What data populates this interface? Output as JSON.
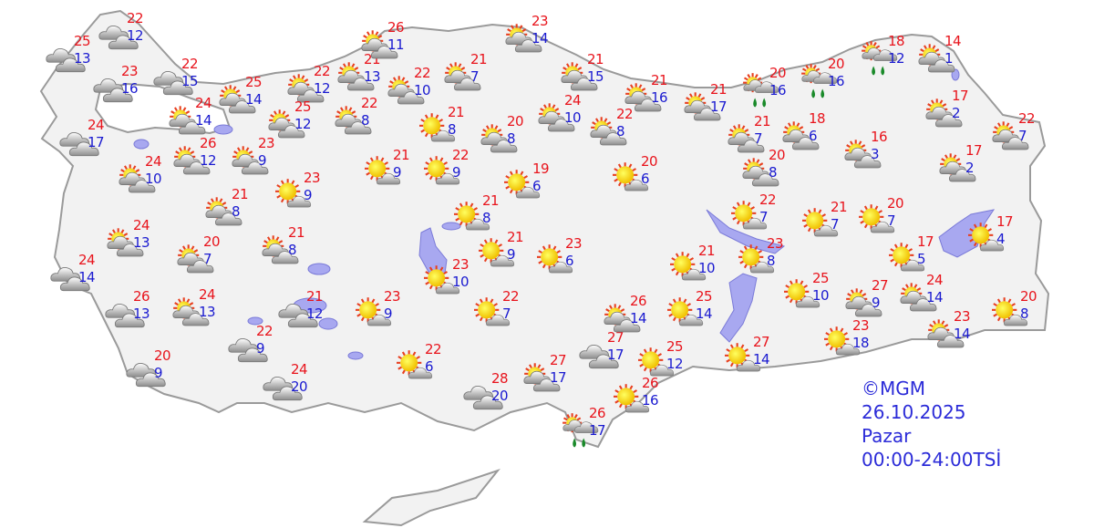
{
  "legend": {
    "source": "©MGM",
    "date": "26.10.2025",
    "day": "Pazar",
    "period": "00:00-24:00TSİ"
  },
  "colors": {
    "land": "#f2f2f2",
    "border": "#9a9a9a",
    "lake": "#a8a8f0",
    "high": "#e8141c",
    "low": "#1a1ad0",
    "info": "#2b2bd8"
  },
  "stations": [
    {
      "icon": "cloudy",
      "high": "25",
      "low": "13"
    },
    {
      "icon": "cloudy",
      "high": "22",
      "low": "12"
    },
    {
      "icon": "cloudy",
      "high": "23",
      "low": "16"
    },
    {
      "icon": "cloudy",
      "high": "22",
      "low": "15"
    },
    {
      "icon": "cloudy",
      "high": "24",
      "low": "17"
    },
    {
      "icon": "partly-cloudy",
      "high": "25",
      "low": "14"
    },
    {
      "icon": "partly-cloudy",
      "high": "24",
      "low": "14"
    },
    {
      "icon": "partly-cloudy",
      "high": "22",
      "low": "12"
    },
    {
      "icon": "partly-cloudy",
      "high": "21",
      "low": "13"
    },
    {
      "icon": "partly-cloudy",
      "high": "26",
      "low": "11"
    },
    {
      "icon": "partly-cloudy",
      "high": "22",
      "low": "10"
    },
    {
      "icon": "partly-cloudy",
      "high": "21",
      "low": "7"
    },
    {
      "icon": "partly-cloudy",
      "high": "25",
      "low": "12"
    },
    {
      "icon": "partly-cloudy",
      "high": "22",
      "low": "8"
    },
    {
      "icon": "partly-cloudy",
      "high": "24",
      "low": "10"
    },
    {
      "icon": "partly-cloudy",
      "high": "26",
      "low": "12"
    },
    {
      "icon": "partly-cloudy",
      "high": "23",
      "low": "9"
    },
    {
      "icon": "partly-cloudy",
      "high": "21",
      "low": "8"
    },
    {
      "icon": "mostly-sunny",
      "high": "23",
      "low": "9"
    },
    {
      "icon": "mostly-sunny",
      "high": "21",
      "low": "9"
    },
    {
      "icon": "mostly-sunny",
      "high": "22",
      "low": "9"
    },
    {
      "icon": "mostly-sunny",
      "high": "21",
      "low": "8"
    },
    {
      "icon": "partly-cloudy",
      "high": "20",
      "low": "8"
    },
    {
      "icon": "partly-cloudy",
      "high": "23",
      "low": "14"
    },
    {
      "icon": "mostly-sunny",
      "high": "19",
      "low": "6"
    },
    {
      "icon": "partly-cloudy",
      "high": "24",
      "low": "10"
    },
    {
      "icon": "partly-cloudy",
      "high": "21",
      "low": "15"
    },
    {
      "icon": "partly-cloudy",
      "high": "21",
      "low": "16"
    },
    {
      "icon": "partly-cloudy",
      "high": "21",
      "low": "17"
    },
    {
      "icon": "partly-cloudy",
      "high": "22",
      "low": "8"
    },
    {
      "icon": "mostly-sunny",
      "high": "20",
      "low": "6"
    },
    {
      "icon": "rain",
      "high": "20",
      "low": "16"
    },
    {
      "icon": "rain",
      "high": "20",
      "low": "16"
    },
    {
      "icon": "rain",
      "high": "18",
      "low": "12"
    },
    {
      "icon": "partly-cloudy",
      "high": "14",
      "low": "1"
    },
    {
      "icon": "partly-cloudy",
      "high": "21",
      "low": "7"
    },
    {
      "icon": "partly-cloudy",
      "high": "18",
      "low": "6"
    },
    {
      "icon": "partly-cloudy",
      "high": "16",
      "low": "3"
    },
    {
      "icon": "partly-cloudy",
      "high": "17",
      "low": "2"
    },
    {
      "icon": "partly-cloudy",
      "high": "22",
      "low": "7"
    },
    {
      "icon": "partly-cloudy",
      "high": "17",
      "low": "2"
    },
    {
      "icon": "partly-cloudy",
      "high": "20",
      "low": "8"
    },
    {
      "icon": "mostly-sunny",
      "high": "22",
      "low": "7"
    },
    {
      "icon": "mostly-sunny",
      "high": "21",
      "low": "7"
    },
    {
      "icon": "mostly-sunny",
      "high": "20",
      "low": "7"
    },
    {
      "icon": "mostly-sunny",
      "high": "17",
      "low": "5"
    },
    {
      "icon": "mostly-sunny",
      "high": "17",
      "low": "4"
    },
    {
      "icon": "mostly-sunny",
      "high": "21",
      "low": "8"
    },
    {
      "icon": "mostly-sunny",
      "high": "21",
      "low": "9"
    },
    {
      "icon": "mostly-sunny",
      "high": "23",
      "low": "6"
    },
    {
      "icon": "mostly-sunny",
      "high": "21",
      "low": "10"
    },
    {
      "icon": "mostly-sunny",
      "high": "23",
      "low": "8"
    },
    {
      "icon": "mostly-sunny",
      "high": "23",
      "low": "10"
    },
    {
      "icon": "mostly-sunny",
      "high": "22",
      "low": "7"
    },
    {
      "icon": "mostly-sunny",
      "high": "23",
      "low": "9"
    },
    {
      "icon": "partly-cloudy",
      "high": "24",
      "low": "13"
    },
    {
      "icon": "partly-cloudy",
      "high": "20",
      "low": "7"
    },
    {
      "icon": "partly-cloudy",
      "high": "21",
      "low": "8"
    },
    {
      "icon": "cloudy",
      "high": "24",
      "low": "14"
    },
    {
      "icon": "cloudy",
      "high": "26",
      "low": "13"
    },
    {
      "icon": "partly-cloudy",
      "high": "24",
      "low": "13"
    },
    {
      "icon": "cloudy",
      "high": "21",
      "low": "12"
    },
    {
      "icon": "cloudy",
      "high": "22",
      "low": "9"
    },
    {
      "icon": "cloudy",
      "high": "20",
      "low": "9"
    },
    {
      "icon": "cloudy",
      "high": "24",
      "low": "20"
    },
    {
      "icon": "mostly-sunny",
      "high": "22",
      "low": "6"
    },
    {
      "icon": "cloudy",
      "high": "28",
      "low": "20"
    },
    {
      "icon": "partly-cloudy",
      "high": "27",
      "low": "17"
    },
    {
      "icon": "cloudy",
      "high": "27",
      "low": "17"
    },
    {
      "icon": "partly-cloudy",
      "high": "26",
      "low": "14"
    },
    {
      "icon": "mostly-sunny",
      "high": "25",
      "low": "14"
    },
    {
      "icon": "mostly-sunny",
      "high": "25",
      "low": "12"
    },
    {
      "icon": "mostly-sunny",
      "high": "26",
      "low": "16"
    },
    {
      "icon": "mostly-sunny",
      "high": "27",
      "low": "14"
    },
    {
      "icon": "mostly-sunny",
      "high": "25",
      "low": "10"
    },
    {
      "icon": "partly-cloudy",
      "high": "27",
      "low": "9"
    },
    {
      "icon": "partly-cloudy",
      "high": "24",
      "low": "14"
    },
    {
      "icon": "partly-cloudy",
      "high": "23",
      "low": "14"
    },
    {
      "icon": "mostly-sunny",
      "high": "23",
      "low": "18"
    },
    {
      "icon": "mostly-sunny",
      "high": "20",
      "low": "8"
    },
    {
      "icon": "rain",
      "high": "26",
      "low": "17"
    }
  ]
}
